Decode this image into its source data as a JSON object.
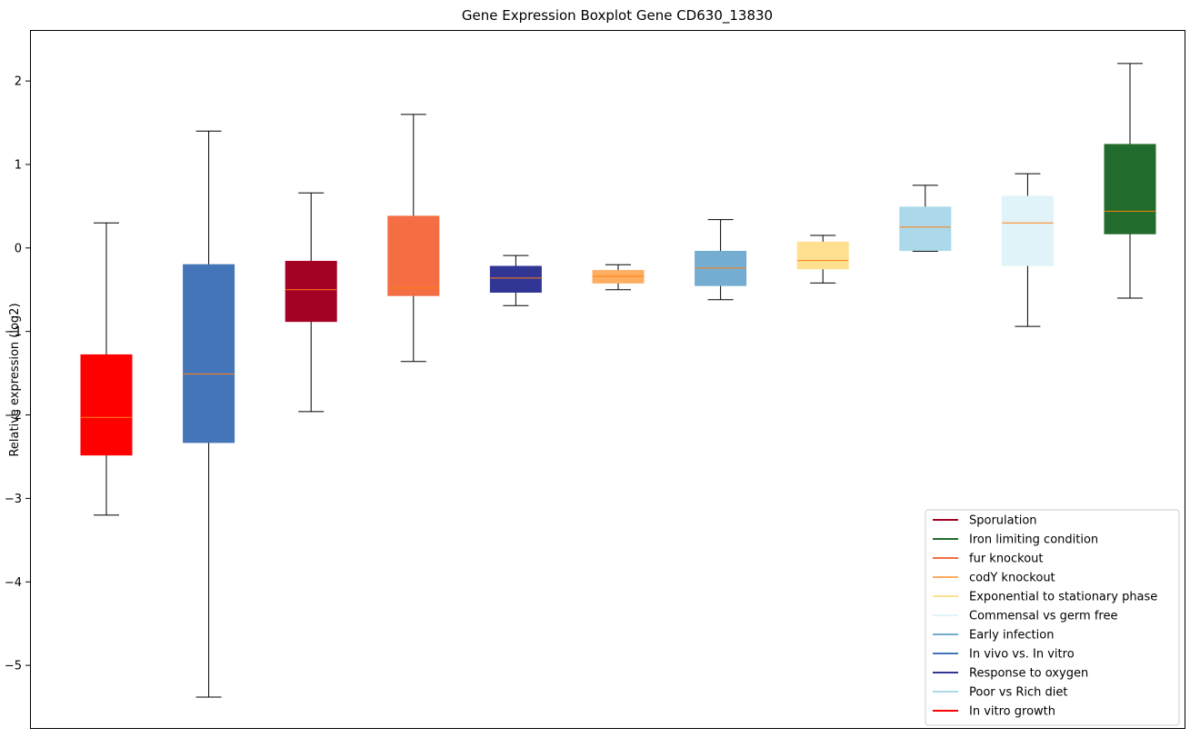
{
  "chart_data": {
    "type": "boxplot",
    "title": "Gene Expression Boxplot Gene CD630_13830",
    "xlabel": "",
    "ylabel": "Relative expression (log2)",
    "ylim": [
      -5.75,
      2.6
    ],
    "yticks": [
      2,
      1,
      0,
      -1,
      -2,
      -3,
      -4,
      -5
    ],
    "ytick_labels": [
      "2",
      "1",
      "0",
      "−1",
      "−2",
      "−3",
      "−4",
      "−5"
    ],
    "legend_position": "lower-right",
    "median_color": "#ff7f0e",
    "series": [
      {
        "name": "In vitro growth",
        "color": "#ff0000",
        "whisker_low": -3.2,
        "q1": -2.48,
        "median": -2.03,
        "q3": -1.28,
        "whisker_high": 0.3
      },
      {
        "name": "In vivo vs. In vitro",
        "color": "#4575b9",
        "whisker_low": -5.38,
        "q1": -2.33,
        "median": -1.51,
        "q3": -0.2,
        "whisker_high": 1.4
      },
      {
        "name": "Sporulation",
        "color": "#a50026",
        "whisker_low": -1.96,
        "q1": -0.88,
        "median": -0.5,
        "q3": -0.16,
        "whisker_high": 0.66
      },
      {
        "name": "fur knockout",
        "color": "#f46d43",
        "whisker_low": -1.36,
        "q1": -0.57,
        "median": -0.48,
        "q3": 0.38,
        "whisker_high": 1.6
      },
      {
        "name": "Response to oxygen",
        "color": "#313695",
        "whisker_low": -0.69,
        "q1": -0.53,
        "median": -0.36,
        "q3": -0.22,
        "whisker_high": -0.09
      },
      {
        "name": "codY knockout",
        "color": "#fdae61",
        "whisker_low": -0.5,
        "q1": -0.42,
        "median": -0.34,
        "q3": -0.27,
        "whisker_high": -0.2
      },
      {
        "name": "Early infection",
        "color": "#74add1",
        "whisker_low": -0.62,
        "q1": -0.45,
        "median": -0.24,
        "q3": -0.04,
        "whisker_high": 0.34
      },
      {
        "name": "Exponential to stationary phase",
        "color": "#fee090",
        "whisker_low": -0.42,
        "q1": -0.25,
        "median": -0.15,
        "q3": 0.07,
        "whisker_high": 0.15
      },
      {
        "name": "Poor vs Rich diet",
        "color": "#abd9e9",
        "whisker_low": -0.04,
        "q1": -0.03,
        "median": 0.25,
        "q3": 0.49,
        "whisker_high": 0.75
      },
      {
        "name": "Commensal vs germ free",
        "color": "#e0f3f8",
        "whisker_low": -0.94,
        "q1": -0.21,
        "median": 0.3,
        "q3": 0.62,
        "whisker_high": 0.89
      },
      {
        "name": "Iron limiting condition",
        "color": "#216b2c",
        "whisker_low": -0.6,
        "q1": 0.17,
        "median": 0.44,
        "q3": 1.24,
        "whisker_high": 2.21
      }
    ],
    "legend": [
      {
        "label": "Sporulation",
        "color": "#a50026"
      },
      {
        "label": "Iron limiting condition",
        "color": "#216b2c"
      },
      {
        "label": "fur knockout",
        "color": "#f46d43"
      },
      {
        "label": "codY knockout",
        "color": "#fdae61"
      },
      {
        "label": "Exponential to stationary phase",
        "color": "#fee090"
      },
      {
        "label": "Commensal vs germ free",
        "color": "#e0f3f8"
      },
      {
        "label": "Early infection",
        "color": "#74add1"
      },
      {
        "label": "In vivo vs. In vitro",
        "color": "#4575b9"
      },
      {
        "label": "Response to oxygen",
        "color": "#313695"
      },
      {
        "label": "Poor vs Rich diet",
        "color": "#abd9e9"
      },
      {
        "label": "In vitro growth",
        "color": "#ff0000"
      }
    ]
  }
}
